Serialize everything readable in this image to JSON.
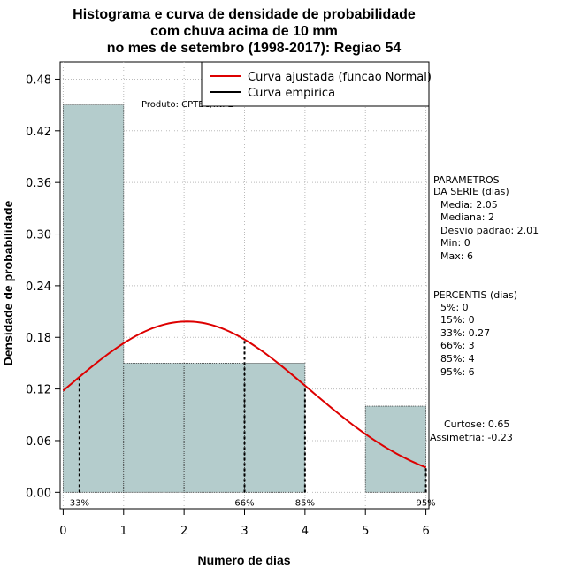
{
  "chart_data": {
    "type": "histogram",
    "title": [
      "Histograma e curva de densidade de probabilidade",
      "com chuva acima de 10 mm",
      "no mes de setembro (1998-2017): Regiao 54"
    ],
    "xlabel": "Numero de dias",
    "ylabel": "Densidade de probabilidade",
    "xlim": [
      -0.05,
      6.05
    ],
    "ylim": [
      -0.0192,
      0.5
    ],
    "x_ticks": [
      "0",
      "1",
      "2",
      "3",
      "4",
      "5",
      "6"
    ],
    "y_ticks": [
      "0.00",
      "0.06",
      "0.12",
      "0.18",
      "0.24",
      "0.30",
      "0.36",
      "0.42",
      "0.48"
    ],
    "grid": true,
    "bins": [
      {
        "x0": 0,
        "x1": 1,
        "value": 0.45
      },
      {
        "x0": 1,
        "x1": 2,
        "value": 0.15
      },
      {
        "x0": 2,
        "x1": 3,
        "value": 0.15
      },
      {
        "x0": 3,
        "x1": 4,
        "value": 0.15
      },
      {
        "x0": 4,
        "x1": 5,
        "value": 0
      },
      {
        "x0": 5,
        "x1": 6,
        "value": 0.1
      }
    ],
    "normal_curve": {
      "mean": 2.05,
      "sd": 2.01,
      "x_range": [
        0,
        6
      ],
      "color": "#dd0000"
    },
    "percentile_lines": [
      {
        "label": "33%",
        "x": 0.27
      },
      {
        "label": "66%",
        "x": 3
      },
      {
        "label": "85%",
        "x": 4
      },
      {
        "label": "95%",
        "x": 6
      }
    ],
    "legend": {
      "location": "top-right",
      "entries": [
        {
          "label": "Curva ajustada (funcao Normal)",
          "color": "#dd0000"
        },
        {
          "label": "Curva empirica",
          "color": "#000000"
        }
      ]
    },
    "annotations": {
      "credit": "Produto: CPTEC/INPE"
    },
    "side_text": {
      "parametros": [
        "PARAMETROS",
        "DA SERIE (dias)",
        "Media: 2.05",
        "Mediana: 2",
        "Desvio padrao: 2.01",
        "Min: 0",
        "Max: 6"
      ],
      "percentis": [
        "PERCENTIS (dias)",
        "5%: 0",
        "15%: 0",
        "33%: 0.27",
        "66%: 3",
        "85%: 4",
        "95%: 6"
      ],
      "shape": [
        "Curtose: 0.65",
        "Assimetria: -0.23"
      ]
    },
    "colors": {
      "bar_fill": "#b4cccc",
      "curve": "#dd0000",
      "grid": "#bbbbbb"
    }
  }
}
